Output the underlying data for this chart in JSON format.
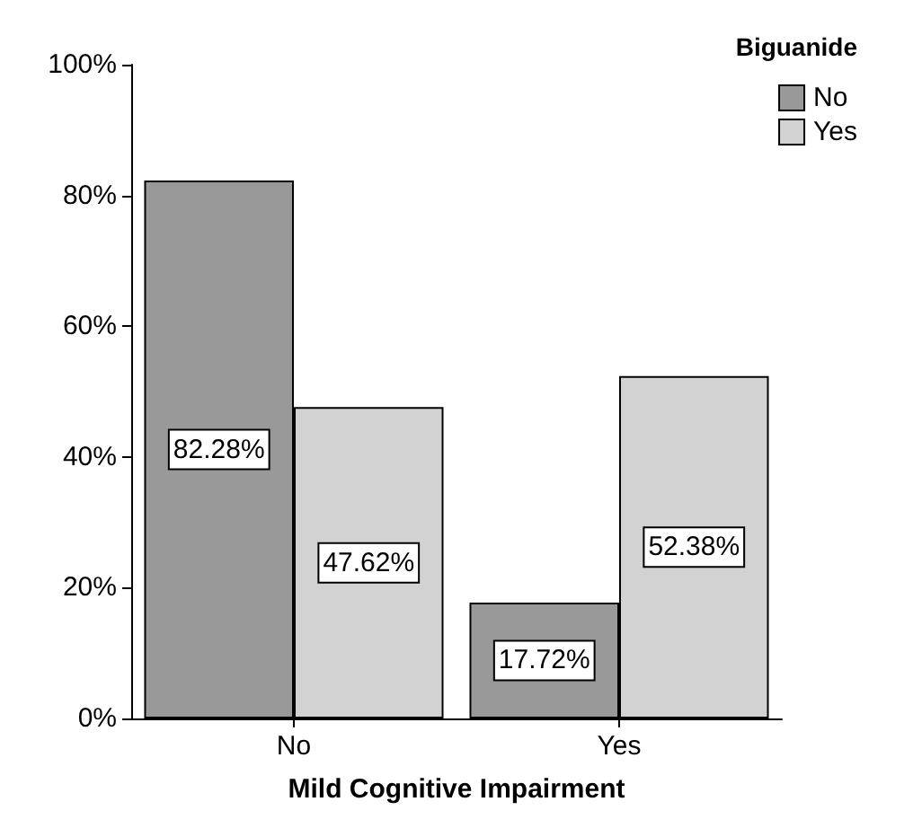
{
  "chart_data": {
    "type": "bar",
    "xlabel": "Mild Cognitive Impairment",
    "legend_title": "Biguanide",
    "categories": [
      "No",
      "Yes"
    ],
    "series": [
      {
        "name": "No",
        "color": "#999999",
        "values": [
          82.28,
          17.72
        ],
        "value_labels": [
          "82.28%",
          "17.72%"
        ]
      },
      {
        "name": "Yes",
        "color": "#d2d2d2",
        "values": [
          47.62,
          52.38
        ],
        "value_labels": [
          "47.62%",
          "52.38%"
        ]
      }
    ],
    "ylim": [
      0,
      100
    ],
    "yticks": [
      {
        "value": 0,
        "label": "0%"
      },
      {
        "value": 20,
        "label": "20%"
      },
      {
        "value": 40,
        "label": "40%"
      },
      {
        "value": 60,
        "label": "60%"
      },
      {
        "value": 80,
        "label": "80%"
      },
      {
        "value": 100,
        "label": "100%"
      }
    ],
    "grid": false,
    "legend": "top right"
  }
}
